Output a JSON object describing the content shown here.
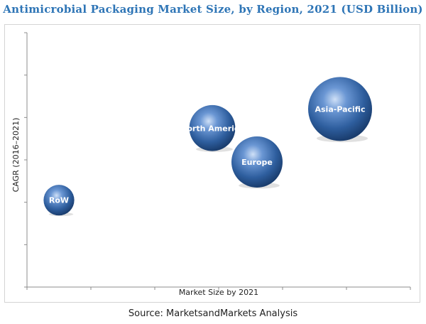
{
  "title": "Antimicrobial Packaging Market Size, by Region, 2021 (USD Billion)",
  "source": "Source: MarketsandMarkets Analysis",
  "chart_data": {
    "type": "scatter",
    "subtype": "bubble",
    "title": "Antimicrobial Packaging Market Size, by Region, 2021 (USD Billion)",
    "xlabel": "Market Size by 2021",
    "ylabel": "CAGR (2016–2021)",
    "xlim": [
      0,
      6
    ],
    "ylim": [
      0,
      6
    ],
    "grid": false,
    "legend": "none",
    "bubble_color": "#2e5e9e",
    "points": [
      {
        "label": "RoW",
        "x": 0.5,
        "y": 2.05,
        "size": 0.6
      },
      {
        "label": "North America",
        "x": 2.9,
        "y": 3.75,
        "size": 0.9
      },
      {
        "label": "Europe",
        "x": 3.6,
        "y": 2.95,
        "size": 1.0
      },
      {
        "label": "Asia-Pacific",
        "x": 4.9,
        "y": 4.2,
        "size": 1.25
      }
    ]
  }
}
